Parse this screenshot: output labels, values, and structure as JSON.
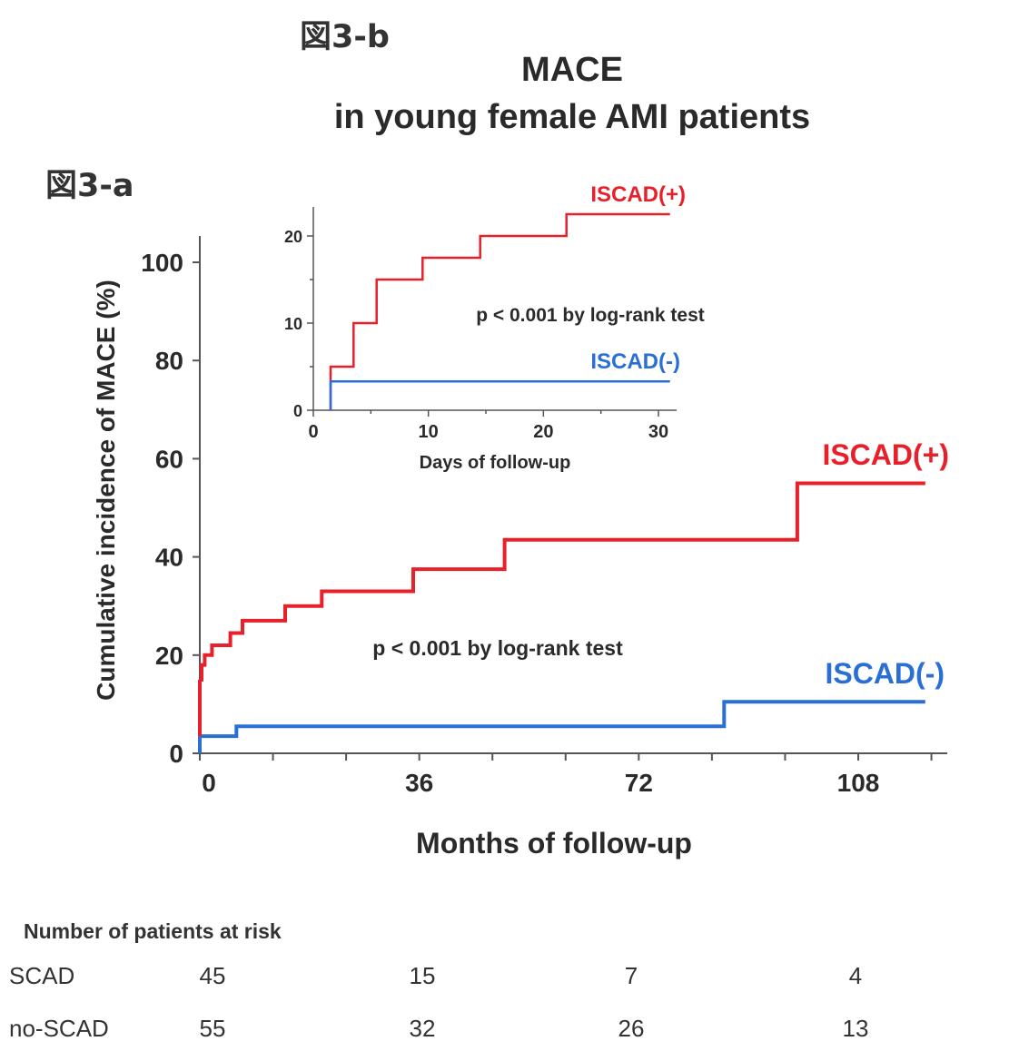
{
  "figure_labels": {
    "a": "図3-a",
    "b": "図3-b"
  },
  "title_lines": [
    "MACE",
    "in young female AMI patients"
  ],
  "colors": {
    "iscad_pos": "#e8202a",
    "iscad_neg": "#2a6fd6",
    "axis": "#555555"
  },
  "chart_data": [
    {
      "type": "line",
      "step": true,
      "xlabel": "Months of follow-up",
      "ylabel": "Cumulative incidence of MACE (%)",
      "xlim": [
        0,
        120
      ],
      "ylim": [
        0,
        106
      ],
      "x_ticks": [
        0,
        36,
        72,
        108
      ],
      "y_ticks": [
        0,
        20,
        40,
        60,
        80,
        100
      ],
      "annotation": "p < 0.001 by log-rank test",
      "series": [
        {
          "name": "ISCAD(+)",
          "color": "#e8202a",
          "x": [
            0,
            0.3,
            0.8,
            2,
            5,
            7,
            14,
            20,
            35,
            50,
            98,
            119
          ],
          "y": [
            15,
            18,
            20,
            22,
            24.5,
            27,
            30,
            33,
            37.5,
            43.5,
            55,
            55
          ]
        },
        {
          "name": "ISCAD(-)",
          "color": "#2a6fd6",
          "x": [
            0,
            6,
            86,
            119
          ],
          "y": [
            3.5,
            5.5,
            10.5,
            10.5
          ]
        }
      ]
    },
    {
      "type": "line",
      "step": true,
      "xlabel": "Days of follow-up",
      "xlim": [
        0,
        31
      ],
      "ylim": [
        0,
        23
      ],
      "x_ticks": [
        0,
        10,
        20,
        30
      ],
      "y_ticks": [
        0,
        10,
        20
      ],
      "annotation": "p < 0.001 by log-rank test",
      "series": [
        {
          "name": "ISCAD(+)",
          "color": "#e8202a",
          "x": [
            1.5,
            1.5,
            3.5,
            5.5,
            9.5,
            14.5,
            22,
            31
          ],
          "y": [
            0,
            5,
            10,
            15,
            17.5,
            20,
            22.5,
            22.5
          ]
        },
        {
          "name": "ISCAD(-)",
          "color": "#2a6fd6",
          "x": [
            1.5,
            1.5,
            31
          ],
          "y": [
            0,
            3.3,
            3.3
          ]
        }
      ]
    }
  ],
  "risk_table": {
    "header": "Number of patients at risk",
    "rows": [
      {
        "name": "SCAD",
        "values": [
          "45",
          "15",
          "7",
          "4"
        ]
      },
      {
        "name": "no-SCAD",
        "values": [
          "55",
          "32",
          "26",
          "13"
        ]
      }
    ]
  }
}
